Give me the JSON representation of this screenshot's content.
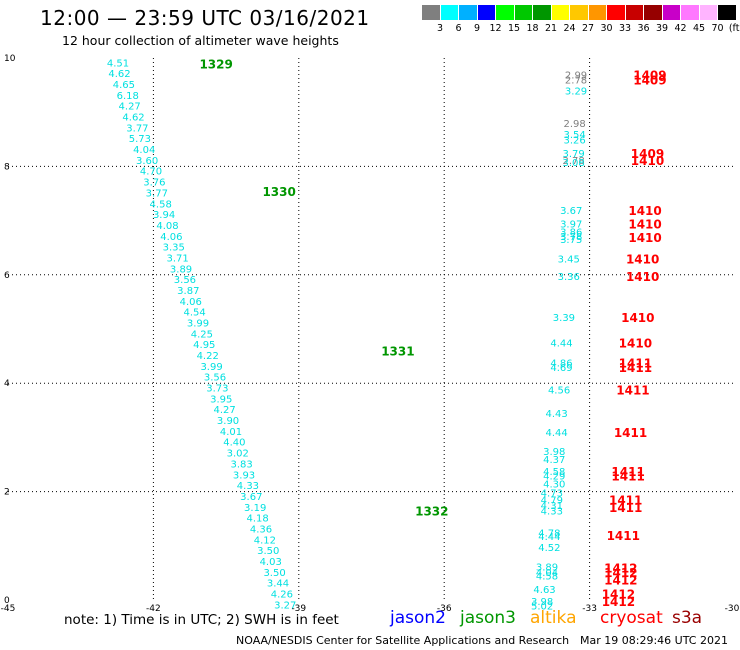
{
  "header": {
    "title": "12:00 — 23:59 UTC 03/16/2021",
    "subtitle": "12 hour collection of altimeter wave heights"
  },
  "color_scale": {
    "labels": [
      "3",
      "6",
      "9",
      "12",
      "15",
      "18",
      "21",
      "24",
      "27",
      "30",
      "33",
      "36",
      "39",
      "42",
      "45",
      "70",
      "(ft)"
    ],
    "colors": [
      "#7f7f7f",
      "#00ffff",
      "#00b0ff",
      "#0000ff",
      "#00ff00",
      "#00c800",
      "#009600",
      "#ffff00",
      "#ffc800",
      "#ff9600",
      "#ff0000",
      "#c80000",
      "#960000",
      "#c800c8",
      "#ff78ff",
      "#ffb4ff",
      "#000000"
    ]
  },
  "footer": {
    "note": "note:  1) Time is in UTC;  2) SWH is in feet",
    "credit": "NOAA/NESDIS Center for Satellite Applications and Research",
    "timestamp": "Mar 19 08:29:46 UTC 2021"
  },
  "legend": [
    {
      "label": "jason2",
      "color": "#0000ff"
    },
    {
      "label": "jason3",
      "color": "#009600"
    },
    {
      "label": "altika",
      "color": "#ffa500"
    },
    {
      "label": "cryosat",
      "color": "#ff0000"
    },
    {
      "label": "s3a",
      "color": "#990000"
    }
  ],
  "chart_data": {
    "type": "scatter",
    "xlim": [
      -45,
      -30
    ],
    "ylim": [
      0,
      10
    ],
    "x_ticks": [
      "-45",
      "-42",
      "-39",
      "-36",
      "-33",
      "-30"
    ],
    "y_ticks": [
      "0",
      "2",
      "4",
      "6",
      "8",
      "10"
    ],
    "grid": true,
    "value_color": "#00e0e0",
    "series": [
      {
        "name": "jason3",
        "label_color": "#009600",
        "time_labels": [
          {
            "text": "1329",
            "x": -41.05,
            "y": 9.9
          },
          {
            "text": "1330",
            "x": -39.75,
            "y": 7.55
          },
          {
            "text": "1331",
            "x": -37.3,
            "y": 4.6
          },
          {
            "text": "1332",
            "x": -36.6,
            "y": 1.65
          }
        ],
        "points": [
          {
            "x": -42.5,
            "y": 9.92,
            "v": "4.51"
          },
          {
            "x": -42.47,
            "y": 9.72,
            "v": "4.62"
          },
          {
            "x": -42.38,
            "y": 9.52,
            "v": "4.65"
          },
          {
            "x": -42.3,
            "y": 9.32,
            "v": "6.18"
          },
          {
            "x": -42.26,
            "y": 9.12,
            "v": "4.27"
          },
          {
            "x": -42.18,
            "y": 8.92,
            "v": "4.62"
          },
          {
            "x": -42.1,
            "y": 8.72,
            "v": "3.77"
          },
          {
            "x": -42.05,
            "y": 8.52,
            "v": "5.73"
          },
          {
            "x": -41.96,
            "y": 8.32,
            "v": "4.04"
          },
          {
            "x": -41.9,
            "y": 8.12,
            "v": "3.60"
          },
          {
            "x": -41.82,
            "y": 7.92,
            "v": "4.70"
          },
          {
            "x": -41.75,
            "y": 7.72,
            "v": "3.76"
          },
          {
            "x": -41.7,
            "y": 7.52,
            "v": "3.77"
          },
          {
            "x": -41.62,
            "y": 7.32,
            "v": "4.58"
          },
          {
            "x": -41.55,
            "y": 7.12,
            "v": "3.94"
          },
          {
            "x": -41.48,
            "y": 6.92,
            "v": "4.08"
          },
          {
            "x": -41.4,
            "y": 6.72,
            "v": "4.06"
          },
          {
            "x": -41.35,
            "y": 6.52,
            "v": "3.35"
          },
          {
            "x": -41.27,
            "y": 6.32,
            "v": "3.71"
          },
          {
            "x": -41.2,
            "y": 6.12,
            "v": "3.89"
          },
          {
            "x": -41.12,
            "y": 5.92,
            "v": "3.56"
          },
          {
            "x": -41.05,
            "y": 5.72,
            "v": "3.87"
          },
          {
            "x": -41.0,
            "y": 5.52,
            "v": "4.06"
          },
          {
            "x": -40.92,
            "y": 5.32,
            "v": "4.54"
          },
          {
            "x": -40.85,
            "y": 5.12,
            "v": "3.99"
          },
          {
            "x": -40.77,
            "y": 4.92,
            "v": "4.25"
          },
          {
            "x": -40.72,
            "y": 4.72,
            "v": "4.95"
          },
          {
            "x": -40.65,
            "y": 4.52,
            "v": "4.22"
          },
          {
            "x": -40.57,
            "y": 4.32,
            "v": "3.99"
          },
          {
            "x": -40.5,
            "y": 4.12,
            "v": "3.56"
          },
          {
            "x": -40.45,
            "y": 3.92,
            "v": "3.73"
          },
          {
            "x": -40.37,
            "y": 3.72,
            "v": "3.95"
          },
          {
            "x": -40.3,
            "y": 3.52,
            "v": "4.27"
          },
          {
            "x": -40.23,
            "y": 3.32,
            "v": "3.90"
          },
          {
            "x": -40.17,
            "y": 3.12,
            "v": "4.01"
          },
          {
            "x": -40.1,
            "y": 2.92,
            "v": "4.40"
          },
          {
            "x": -40.03,
            "y": 2.72,
            "v": "3.02"
          },
          {
            "x": -39.95,
            "y": 2.52,
            "v": "3.83"
          },
          {
            "x": -39.9,
            "y": 2.32,
            "v": "3.93"
          },
          {
            "x": -39.82,
            "y": 2.12,
            "v": "4.33"
          },
          {
            "x": -39.75,
            "y": 1.92,
            "v": "3.67"
          },
          {
            "x": -39.67,
            "y": 1.72,
            "v": "3.19"
          },
          {
            "x": -39.62,
            "y": 1.52,
            "v": "4.18"
          },
          {
            "x": -39.55,
            "y": 1.32,
            "v": "4.36"
          },
          {
            "x": -39.47,
            "y": 1.12,
            "v": "4.12"
          },
          {
            "x": -39.4,
            "y": 0.92,
            "v": "3.50"
          },
          {
            "x": -39.35,
            "y": 0.72,
            "v": "4.03"
          },
          {
            "x": -39.27,
            "y": 0.52,
            "v": "3.50"
          },
          {
            "x": -39.2,
            "y": 0.32,
            "v": "3.44"
          },
          {
            "x": -39.12,
            "y": 0.12,
            "v": "4.26"
          },
          {
            "x": -39.05,
            "y": -0.08,
            "v": "3.27"
          }
        ]
      },
      {
        "name": "cryosat",
        "label_color": "#ff0000",
        "time_labels": [
          {
            "text": "1409",
            "x": -32.1,
            "y": 9.7
          },
          {
            "text": "1409",
            "x": -32.1,
            "y": 9.6
          },
          {
            "text": "1409",
            "x": -32.15,
            "y": 8.25
          },
          {
            "text": "1410",
            "x": -32.15,
            "y": 8.12
          },
          {
            "text": "1410",
            "x": -32.2,
            "y": 7.2
          },
          {
            "text": "1410",
            "x": -32.2,
            "y": 6.95
          },
          {
            "text": "1410",
            "x": -32.2,
            "y": 6.7
          },
          {
            "text": "1410",
            "x": -32.25,
            "y": 6.3
          },
          {
            "text": "1410",
            "x": -32.25,
            "y": 5.98
          },
          {
            "text": "1410",
            "x": -32.35,
            "y": 5.22
          },
          {
            "text": "1410",
            "x": -32.4,
            "y": 4.75
          },
          {
            "text": "1411",
            "x": -32.4,
            "y": 4.38
          },
          {
            "text": "1411",
            "x": -32.4,
            "y": 4.3
          },
          {
            "text": "1411",
            "x": -32.45,
            "y": 3.88
          },
          {
            "text": "1411",
            "x": -32.5,
            "y": 3.1
          },
          {
            "text": "1411",
            "x": -32.55,
            "y": 2.38
          },
          {
            "text": "1411",
            "x": -32.55,
            "y": 2.3
          },
          {
            "text": "1411",
            "x": -32.6,
            "y": 1.85
          },
          {
            "text": "1411",
            "x": -32.6,
            "y": 1.72
          },
          {
            "text": "1411",
            "x": -32.65,
            "y": 1.2
          },
          {
            "text": "1412",
            "x": -32.7,
            "y": 0.6
          },
          {
            "text": "1412",
            "x": -32.7,
            "y": 0.52
          },
          {
            "text": "1412",
            "x": -32.7,
            "y": 0.38
          },
          {
            "text": "1412",
            "x": -32.75,
            "y": 0.12
          },
          {
            "text": "1412",
            "x": -32.75,
            "y": -0.02
          }
        ],
        "points": [
          {
            "x": -33.05,
            "y": 9.7,
            "v": "2.99",
            "c": "#7f7f7f"
          },
          {
            "x": -33.05,
            "y": 9.6,
            "v": "2.78",
            "c": "#7f7f7f"
          },
          {
            "x": -33.05,
            "y": 9.4,
            "v": "3.29"
          },
          {
            "x": -33.08,
            "y": 8.8,
            "v": "2.98",
            "c": "#7f7f7f"
          },
          {
            "x": -33.08,
            "y": 8.6,
            "v": "3.54"
          },
          {
            "x": -33.08,
            "y": 8.5,
            "v": "3.26"
          },
          {
            "x": -33.1,
            "y": 8.25,
            "v": "3.79"
          },
          {
            "x": -33.1,
            "y": 8.12,
            "v": "2.78",
            "c": "#7f7f7f"
          },
          {
            "x": -33.1,
            "y": 8.08,
            "v": "3.08"
          },
          {
            "x": -33.15,
            "y": 7.2,
            "v": "3.67"
          },
          {
            "x": -33.15,
            "y": 6.95,
            "v": "3.97"
          },
          {
            "x": -33.15,
            "y": 6.8,
            "v": "3.86"
          },
          {
            "x": -33.15,
            "y": 6.72,
            "v": "3.78"
          },
          {
            "x": -33.15,
            "y": 6.66,
            "v": "3.75"
          },
          {
            "x": -33.2,
            "y": 6.3,
            "v": "3.45"
          },
          {
            "x": -33.2,
            "y": 5.98,
            "v": "3.36"
          },
          {
            "x": -33.3,
            "y": 5.22,
            "v": "3.39"
          },
          {
            "x": -33.35,
            "y": 4.75,
            "v": "4.44"
          },
          {
            "x": -33.35,
            "y": 4.38,
            "v": "4.86"
          },
          {
            "x": -33.35,
            "y": 4.3,
            "v": "4.69"
          },
          {
            "x": -33.4,
            "y": 3.88,
            "v": "4.56"
          },
          {
            "x": -33.45,
            "y": 3.45,
            "v": "4.43"
          },
          {
            "x": -33.45,
            "y": 3.1,
            "v": "4.44"
          },
          {
            "x": -33.5,
            "y": 2.75,
            "v": "3.98"
          },
          {
            "x": -33.5,
            "y": 2.6,
            "v": "4.37"
          },
          {
            "x": -33.5,
            "y": 2.38,
            "v": "4.58"
          },
          {
            "x": -33.5,
            "y": 2.3,
            "v": "4.29"
          },
          {
            "x": -33.5,
            "y": 2.15,
            "v": "4.30"
          },
          {
            "x": -33.55,
            "y": 1.98,
            "v": "4.73"
          },
          {
            "x": -33.55,
            "y": 1.85,
            "v": "4.79"
          },
          {
            "x": -33.55,
            "y": 1.75,
            "v": "4.31"
          },
          {
            "x": -33.55,
            "y": 1.65,
            "v": "4.33"
          },
          {
            "x": -33.6,
            "y": 1.25,
            "v": "4.78"
          },
          {
            "x": -33.6,
            "y": 1.18,
            "v": "4.44"
          },
          {
            "x": -33.6,
            "y": 0.98,
            "v": "4.52"
          },
          {
            "x": -33.65,
            "y": 0.62,
            "v": "3.89"
          },
          {
            "x": -33.65,
            "y": 0.52,
            "v": "4.04"
          },
          {
            "x": -33.65,
            "y": 0.45,
            "v": "4.58"
          },
          {
            "x": -33.7,
            "y": 0.2,
            "v": "4.63"
          },
          {
            "x": -33.75,
            "y": -0.02,
            "v": "3.98"
          },
          {
            "x": -33.75,
            "y": -0.1,
            "v": "5.02"
          }
        ]
      }
    ]
  }
}
